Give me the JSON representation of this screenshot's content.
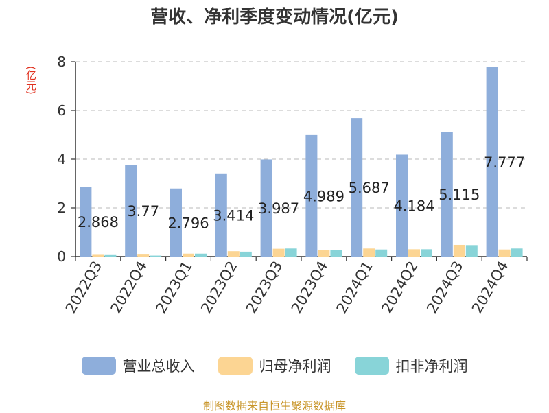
{
  "title": "营收、净利季度变动情况(亿元)",
  "unit_label": "(亿元)",
  "source_note": "制图数据来自恒生聚源数据库",
  "chart_data": {
    "type": "bar",
    "title": "营收、净利季度变动情况(亿元)",
    "ylabel": "(亿元)",
    "ylim": [
      0,
      8
    ],
    "yticks": [
      0,
      2,
      4,
      6,
      8
    ],
    "grid": true,
    "legend_position": "bottom",
    "categories": [
      "2022Q3",
      "2022Q4",
      "2023Q1",
      "2023Q2",
      "2023Q3",
      "2023Q4",
      "2024Q1",
      "2024Q2",
      "2024Q3",
      "2024Q4"
    ],
    "series": [
      {
        "name": "营业总收入",
        "color": "#8eaedb",
        "values": [
          2.868,
          3.77,
          2.796,
          3.414,
          3.987,
          4.989,
          5.687,
          4.184,
          5.115,
          7.777
        ],
        "labels": [
          "2.868",
          "3.77",
          "2.796",
          "3.414",
          "3.987",
          "4.989",
          "5.687",
          "4.184",
          "5.115",
          "7.777"
        ]
      },
      {
        "name": "归母净利润",
        "color": "#fcd593",
        "values": [
          0.1,
          0.11,
          0.12,
          0.22,
          0.32,
          0.28,
          0.33,
          0.3,
          0.48,
          0.29
        ]
      },
      {
        "name": "扣非净利润",
        "color": "#88d4d8",
        "values": [
          0.09,
          0.04,
          0.12,
          0.2,
          0.33,
          0.28,
          0.29,
          0.3,
          0.47,
          0.33
        ]
      }
    ]
  }
}
